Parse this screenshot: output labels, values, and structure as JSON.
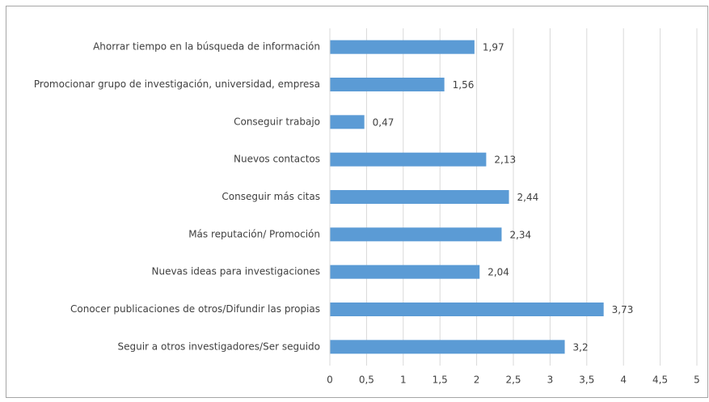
{
  "chart_data": {
    "type": "bar",
    "orientation": "horizontal",
    "categories": [
      "Ahorrar tiempo  en la búsqueda de información",
      "Promocionar grupo de investigación, universidad, empresa",
      "Conseguir trabajo",
      "Nuevos contactos",
      "Conseguir más citas",
      "Más reputación/ Promoción",
      "Nuevas ideas para investigaciones",
      "Conocer publicaciones de otros/Difundir las propias",
      "Seguir a otros investigadores/Ser seguido"
    ],
    "values": [
      1.97,
      1.56,
      0.47,
      2.13,
      2.44,
      2.34,
      2.04,
      3.73,
      3.2
    ],
    "value_labels": [
      "1,97",
      "1,56",
      "0,47",
      "2,13",
      "2,44",
      "2,34",
      "2,04",
      "3,73",
      "3,2"
    ],
    "color": "#5b9bd5",
    "xlim": [
      0,
      5
    ],
    "xticks": [
      0,
      {
        "value": 0.5,
        "label": "0,5"
      },
      1,
      {
        "value": 1.5,
        "label": "1,5"
      },
      2,
      {
        "value": 2.5,
        "label": "2,5"
      },
      3,
      {
        "value": 3.5,
        "label": "3,5"
      },
      4,
      {
        "value": 4.5,
        "label": "4,5"
      },
      5
    ],
    "grid": true
  }
}
